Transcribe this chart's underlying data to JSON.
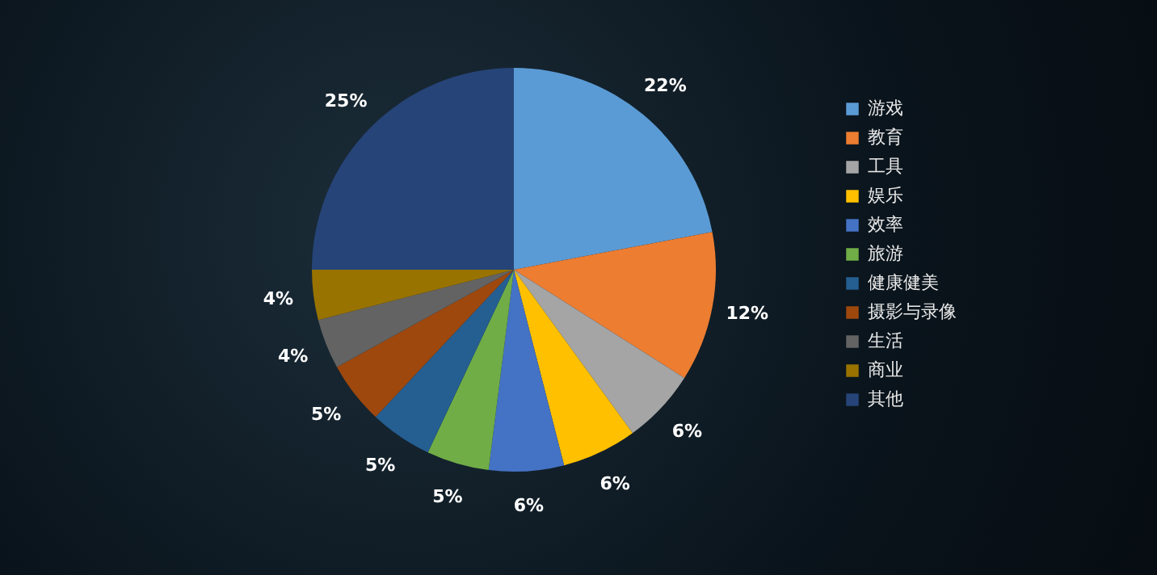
{
  "chart_data": {
    "type": "pie",
    "categories": [
      "游戏",
      "教育",
      "工具",
      "娱乐",
      "效率",
      "旅游",
      "健康健美",
      "摄影与录像",
      "生活",
      "商业",
      "其他"
    ],
    "values": [
      22,
      12,
      6,
      6,
      6,
      5,
      5,
      5,
      4,
      4,
      25
    ],
    "value_labels": [
      "22%",
      "12%",
      "6%",
      "6%",
      "6%",
      "5%",
      "5%",
      "5%",
      "4%",
      "4%",
      "25%"
    ],
    "colors": [
      "#5b9bd5",
      "#ed7d31",
      "#a5a5a5",
      "#ffc000",
      "#4472c4",
      "#70ad47",
      "#255e91",
      "#9e480e",
      "#636363",
      "#997300",
      "#264478"
    ],
    "legend": "right"
  }
}
